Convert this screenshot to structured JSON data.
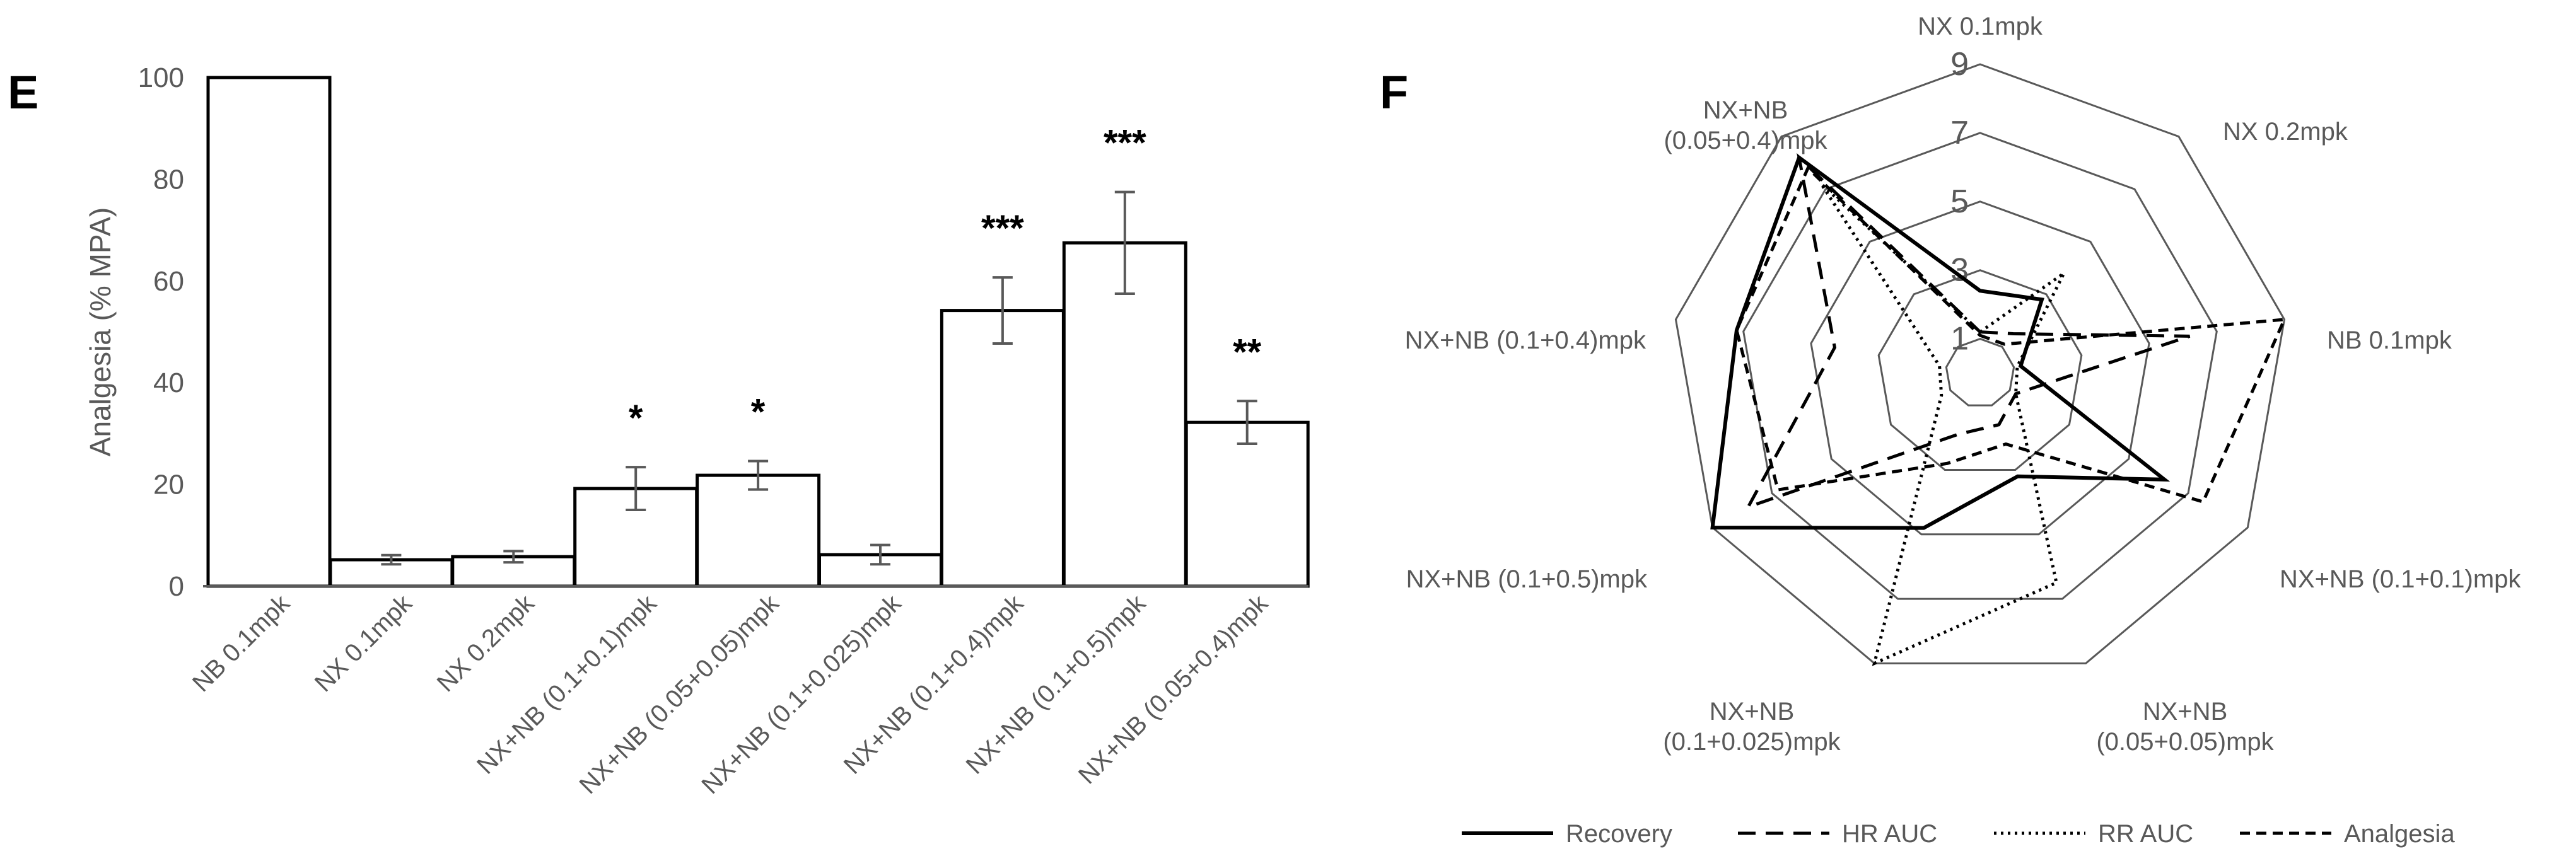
{
  "chart_data": [
    {
      "type": "bar",
      "panel_label": "E",
      "ylabel": "Analgesia (% MPA)",
      "ylim": [
        0,
        100
      ],
      "yticks": [
        0,
        20,
        40,
        60,
        80,
        100
      ],
      "categories": [
        "NB 0.1mpk",
        "NX 0.1mpk",
        "NX 0.2mpk",
        "NX+NB (0.1+0.1)mpk",
        "NX+NB (0.05+0.05)mpk",
        "NX+NB (0.1+0.025)mpk",
        "NX+NB (0.1+0.4)mpk",
        "NX+NB (0.1+0.5)mpk",
        "NX+NB (0.05+0.4)mpk"
      ],
      "values": [
        100,
        5.2,
        5.8,
        19.2,
        21.8,
        6.2,
        54.2,
        67.5,
        32.2
      ],
      "errors": [
        0,
        0.9,
        1.1,
        4.2,
        2.8,
        1.9,
        6.5,
        10,
        4.2
      ],
      "significance": [
        "",
        "",
        "",
        "*",
        "*",
        "",
        "***",
        "***",
        "**"
      ]
    },
    {
      "type": "radar",
      "panel_label": "F",
      "axes": [
        "NX 0.1mpk",
        "NX 0.2mpk",
        "NB 0.1mpk",
        "NX+NB (0.1+0.1)mpk",
        "NX+NB (0.05+0.05)mpk",
        "NX+NB (0.1+0.025)mpk",
        "NX+NB (0.1+0.5)mpk",
        "NX+NB (0.1+0.4)mpk",
        "NX+NB (0.05+0.4)mpk"
      ],
      "axis_label_lines": [
        [
          "NX 0.1mpk"
        ],
        [
          "NX 0.2mpk"
        ],
        [
          "NB 0.1mpk"
        ],
        [
          "NX+NB (0.1+0.1)mpk"
        ],
        [
          "NX+NB",
          "(0.05+0.05)mpk"
        ],
        [
          "NX+NB",
          "(0.1+0.025)mpk"
        ],
        [
          "NX+NB (0.1+0.5)mpk"
        ],
        [
          "NX+NB (0.1+0.4)mpk"
        ],
        [
          "NX+NB",
          "(0.05+0.4)mpk"
        ]
      ],
      "rmin": 0,
      "rmax": 9,
      "ring_labels": [
        1,
        3,
        5,
        7,
        9
      ],
      "legend_position": "bottom",
      "series": [
        {
          "name": "Recovery",
          "style": "solid",
          "values": [
            2.4,
            2.8,
            1.2,
            6.2,
            3.2,
            4.8,
            9,
            7.2,
            8.2
          ]
        },
        {
          "name": "HR AUC",
          "style": "dashed",
          "values": [
            1.2,
            1.5,
            6.2,
            1.2,
            1.6,
            1.9,
            7.8,
            4.3,
            8.2
          ]
        },
        {
          "name": "RR AUC",
          "style": "dotted",
          "values": [
            1.2,
            3.8,
            1.1,
            1.2,
            6.5,
            9,
            1.3,
            1.2,
            7.2
          ]
        },
        {
          "name": "Analgesia",
          "style": "short-dashed",
          "values": [
            1.1,
            1.1,
            9,
            7.5,
            2.2,
            2.8,
            6.8,
            7.2,
            7.8
          ]
        }
      ]
    }
  ]
}
